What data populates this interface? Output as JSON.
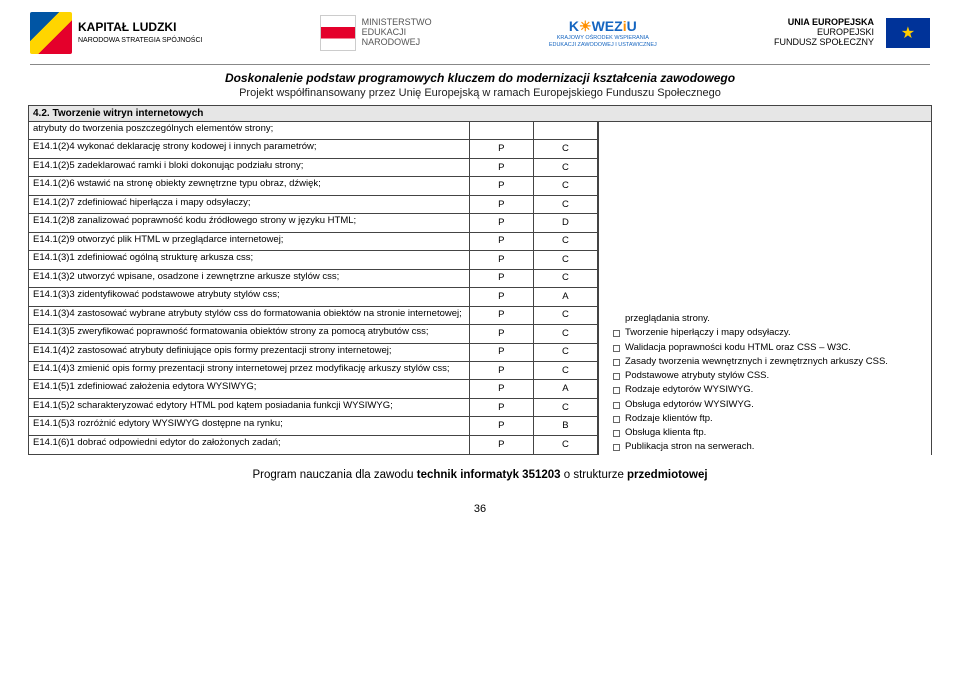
{
  "logos": {
    "kapital": {
      "title": "KAPITAŁ LUDZKI",
      "subtitle": "NARODOWA STRATEGIA SPÓJNOŚCI"
    },
    "men": {
      "line1": "MINISTERSTWO",
      "line2": "EDUKACJI",
      "line3": "NARODOWEJ"
    },
    "koweziu": {
      "brand_k": "K",
      "brand_mid": "WEZ",
      "brand_i": "i",
      "brand_u": "U",
      "sub1": "KRAJOWY OŚRODEK WSPIERANIA",
      "sub2": "EDUKACJI ZAWODOWEJ I USTAWICZNEJ"
    },
    "eu": {
      "line1": "UNIA EUROPEJSKA",
      "line2": "EUROPEJSKI",
      "line3": "FUNDUSZ SPOŁECZNY",
      "stars": "★"
    }
  },
  "header": {
    "title1": "Doskonalenie podstaw programowych kluczem do modernizacji kształcenia zawodowego",
    "title2": "Projekt współfinansowany przez Unię Europejską w ramach Europejskiego Funduszu Społecznego"
  },
  "section_title": "4.2. Tworzenie witryn internetowych",
  "intro_row": "atrybuty do tworzenia poszczególnych elementów strony;",
  "rows": [
    {
      "desc": "E14.1(2)4 wykonać deklarację strony kodowej i innych parametrów;",
      "c2": "P",
      "c3": "C"
    },
    {
      "desc": "E14.1(2)5 zadeklarować ramki i bloki dokonując podziału strony;",
      "c2": "P",
      "c3": "C"
    },
    {
      "desc": "E14.1(2)6 wstawić na stronę obiekty zewnętrzne typu obraz, dźwięk;",
      "c2": "P",
      "c3": "C"
    },
    {
      "desc": "E14.1(2)7 zdefiniować hiperłącza i mapy odsyłaczy;",
      "c2": "P",
      "c3": "C"
    },
    {
      "desc": "E14.1(2)8 zanalizować poprawność kodu źródłowego strony w języku HTML;",
      "c2": "P",
      "c3": "D"
    },
    {
      "desc": "E14.1(2)9 otworzyć plik HTML w przeglądarce internetowej;",
      "c2": "P",
      "c3": "C"
    },
    {
      "desc": "E14.1(3)1 zdefiniować ogólną strukturę arkusza css;",
      "c2": "P",
      "c3": "C"
    },
    {
      "desc": "E14.1(3)2 utworzyć wpisane, osadzone i zewnętrzne arkusze stylów css;",
      "c2": "P",
      "c3": "C"
    },
    {
      "desc": "E14.1(3)3 zidentyfikować podstawowe atrybuty stylów css;",
      "c2": "P",
      "c3": "A"
    },
    {
      "desc": "E14.1(3)4 zastosować wybrane atrybuty stylów css do formatowania obiektów na stronie internetowej;",
      "c2": "P",
      "c3": "C"
    },
    {
      "desc": "E14.1(3)5 zweryfikować poprawność formatowania obiektów strony za pomocą atrybutów css;",
      "c2": "P",
      "c3": "C"
    },
    {
      "desc": "E14.1(4)2 zastosować atrybuty definiujące opis formy prezentacji strony internetowej;",
      "c2": "P",
      "c3": "C"
    },
    {
      "desc": "E14.1(4)3 zmienić opis formy prezentacji strony internetowej przez modyfikację arkuszy stylów css;",
      "c2": "P",
      "c3": "C"
    },
    {
      "desc": "E14.1(5)1 zdefiniować założenia edytora WYSIWYG;",
      "c2": "P",
      "c3": "A"
    },
    {
      "desc": "E14.1(5)2 scharakteryzować edytory HTML pod kątem posiadania funkcji WYSIWYG;",
      "c2": "P",
      "c3": "C"
    },
    {
      "desc": "E14.1(5)3 rozróżnić edytory WYSIWYG dostępne na rynku;",
      "c2": "P",
      "c3": "B"
    },
    {
      "desc": "E14.1(6)1 dobrać odpowiedni edytor do założonych zadań;",
      "c2": "P",
      "c3": "C"
    }
  ],
  "right_first": "przeglądania strony.",
  "topics": [
    "Tworzenie hiperłączy i mapy odsyłaczy.",
    "Walidacja poprawności kodu HTML oraz CSS – W3C.",
    "Zasady tworzenia wewnętrznych i zewnętrznych arkuszy CSS.",
    "Podstawowe atrybuty stylów CSS.",
    "Rodzaje edytorów WYSIWYG.",
    "Obsługa edytorów WYSIWYG.",
    "Rodzaje klientów ftp.",
    "Obsługa klienta ftp.",
    "Publikacja stron na serwerach."
  ],
  "footer": {
    "prefix": "Program nauczania dla zawodu ",
    "bold": "technik informatyk 351203",
    "suffix": " o strukturze ",
    "bold2": "przedmiotowej",
    "page": "36"
  }
}
